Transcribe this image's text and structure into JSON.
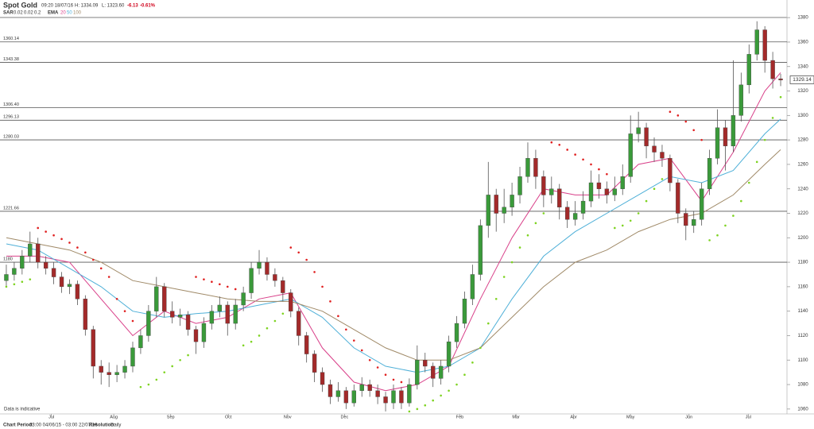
{
  "header": {
    "title": "Spot Gold",
    "time": "09:20 18/07/16",
    "high": "H: 1334.09",
    "low": "L: 1323.60",
    "change": "-6.13",
    "change_pct": "-0.61%",
    "sar_label": "SAR",
    "sar_params": [
      0.02,
      0.02,
      0.2
    ],
    "ema_label": "EMA"
  },
  "chart_data": {
    "type": "candlestick",
    "note": "Data is indicative",
    "up_color": "#3a9a3a",
    "down_color": "#a32a2a",
    "xlim": [
      -0.8,
      98.8
    ],
    "ylim": [
      1056,
      1384
    ],
    "xticks": [
      {
        "value": 5.7,
        "label": "Jul"
      },
      {
        "value": 13.6,
        "label": "Aug"
      },
      {
        "value": 20.8,
        "label": "Sep"
      },
      {
        "value": 28.1,
        "label": "Oct"
      },
      {
        "value": 35.6,
        "label": "Nov"
      },
      {
        "value": 42.8,
        "label": "Dec"
      },
      {
        "value": 57.4,
        "label": "Feb"
      },
      {
        "value": 64.5,
        "label": "Mar"
      },
      {
        "value": 71.8,
        "label": "Apr"
      },
      {
        "value": 79.0,
        "label": "May"
      },
      {
        "value": 86.4,
        "label": "Jun"
      },
      {
        "value": 93.9,
        "label": "Jul"
      }
    ],
    "yticks": [
      1060,
      1080,
      1100,
      1120,
      1140,
      1160,
      1180,
      1200,
      1220,
      1240,
      1260,
      1280,
      1300,
      1320,
      1340,
      1360,
      1380
    ],
    "levels": [
      1360.14,
      1343.38,
      {
        "value": 1306.4,
        "label": "1306.40"
      },
      1296.13,
      1280.03,
      1221.66,
      1180
    ],
    "last_price": 1329.14,
    "ohlc": [
      [
        1165,
        1178,
        1160,
        1170
      ],
      [
        1170,
        1180,
        1165,
        1175
      ],
      [
        1175,
        1190,
        1170,
        1185
      ],
      [
        1185,
        1205,
        1180,
        1195
      ],
      [
        1195,
        1200,
        1175,
        1180
      ],
      [
        1180,
        1185,
        1170,
        1175
      ],
      [
        1175,
        1180,
        1162,
        1168
      ],
      [
        1168,
        1172,
        1155,
        1160
      ],
      [
        1160,
        1166,
        1154,
        1162
      ],
      [
        1162,
        1165,
        1145,
        1150
      ],
      [
        1150,
        1153,
        1120,
        1125
      ],
      [
        1125,
        1128,
        1085,
        1095
      ],
      [
        1095,
        1100,
        1080,
        1090
      ],
      [
        1090,
        1098,
        1078,
        1088
      ],
      [
        1088,
        1096,
        1082,
        1090
      ],
      [
        1090,
        1100,
        1085,
        1095
      ],
      [
        1095,
        1115,
        1090,
        1110
      ],
      [
        1110,
        1125,
        1105,
        1120
      ],
      [
        1120,
        1145,
        1115,
        1140
      ],
      [
        1140,
        1168,
        1135,
        1160
      ],
      [
        1160,
        1163,
        1135,
        1140
      ],
      [
        1140,
        1148,
        1130,
        1135
      ],
      [
        1135,
        1142,
        1128,
        1137
      ],
      [
        1137,
        1140,
        1120,
        1125
      ],
      [
        1125,
        1128,
        1105,
        1115
      ],
      [
        1115,
        1135,
        1110,
        1130
      ],
      [
        1130,
        1145,
        1125,
        1140
      ],
      [
        1140,
        1152,
        1135,
        1145
      ],
      [
        1145,
        1148,
        1120,
        1130
      ],
      [
        1130,
        1150,
        1125,
        1145
      ],
      [
        1145,
        1160,
        1140,
        1155
      ],
      [
        1155,
        1180,
        1150,
        1175
      ],
      [
        1175,
        1190,
        1170,
        1180
      ],
      [
        1180,
        1184,
        1165,
        1170
      ],
      [
        1170,
        1175,
        1160,
        1165
      ],
      [
        1165,
        1168,
        1148,
        1155
      ],
      [
        1155,
        1158,
        1135,
        1140
      ],
      [
        1140,
        1143,
        1112,
        1120
      ],
      [
        1120,
        1123,
        1098,
        1105
      ],
      [
        1105,
        1108,
        1082,
        1090
      ],
      [
        1090,
        1094,
        1074,
        1080
      ],
      [
        1080,
        1084,
        1064,
        1070
      ],
      [
        1070,
        1082,
        1066,
        1075
      ],
      [
        1075,
        1078,
        1060,
        1065
      ],
      [
        1065,
        1080,
        1062,
        1075
      ],
      [
        1075,
        1086,
        1070,
        1080
      ],
      [
        1080,
        1084,
        1070,
        1075
      ],
      [
        1075,
        1080,
        1064,
        1070
      ],
      [
        1070,
        1074,
        1058,
        1065
      ],
      [
        1065,
        1080,
        1060,
        1075
      ],
      [
        1075,
        1078,
        1060,
        1065
      ],
      [
        1065,
        1085,
        1062,
        1080
      ],
      [
        1080,
        1112,
        1076,
        1100
      ],
      [
        1100,
        1106,
        1090,
        1095
      ],
      [
        1095,
        1098,
        1078,
        1085
      ],
      [
        1085,
        1100,
        1080,
        1095
      ],
      [
        1095,
        1120,
        1090,
        1115
      ],
      [
        1115,
        1136,
        1110,
        1130
      ],
      [
        1130,
        1156,
        1126,
        1150
      ],
      [
        1150,
        1178,
        1145,
        1170
      ],
      [
        1170,
        1215,
        1165,
        1210
      ],
      [
        1210,
        1262,
        1200,
        1235
      ],
      [
        1235,
        1240,
        1205,
        1220
      ],
      [
        1220,
        1240,
        1212,
        1225
      ],
      [
        1225,
        1245,
        1218,
        1235
      ],
      [
        1235,
        1258,
        1228,
        1250
      ],
      [
        1250,
        1278,
        1245,
        1265
      ],
      [
        1265,
        1272,
        1240,
        1250
      ],
      [
        1250,
        1255,
        1225,
        1235
      ],
      [
        1235,
        1250,
        1228,
        1240
      ],
      [
        1240,
        1244,
        1215,
        1225
      ],
      [
        1225,
        1230,
        1208,
        1215
      ],
      [
        1215,
        1230,
        1210,
        1220
      ],
      [
        1220,
        1238,
        1215,
        1230
      ],
      [
        1230,
        1255,
        1225,
        1245
      ],
      [
        1245,
        1252,
        1232,
        1240
      ],
      [
        1240,
        1246,
        1228,
        1235
      ],
      [
        1235,
        1250,
        1230,
        1240
      ],
      [
        1240,
        1260,
        1235,
        1250
      ],
      [
        1250,
        1300,
        1245,
        1285
      ],
      [
        1285,
        1303,
        1278,
        1290
      ],
      [
        1290,
        1294,
        1265,
        1275
      ],
      [
        1275,
        1282,
        1262,
        1270
      ],
      [
        1270,
        1276,
        1258,
        1265
      ],
      [
        1265,
        1268,
        1238,
        1245
      ],
      [
        1245,
        1248,
        1212,
        1220
      ],
      [
        1220,
        1224,
        1198,
        1210
      ],
      [
        1210,
        1222,
        1204,
        1215
      ],
      [
        1215,
        1245,
        1210,
        1240
      ],
      [
        1240,
        1272,
        1235,
        1265
      ],
      [
        1265,
        1305,
        1260,
        1290
      ],
      [
        1290,
        1296,
        1255,
        1275
      ],
      [
        1275,
        1345,
        1270,
        1300
      ],
      [
        1300,
        1335,
        1295,
        1325
      ],
      [
        1325,
        1358,
        1318,
        1350
      ],
      [
        1350,
        1377,
        1345,
        1370
      ],
      [
        1370,
        1373,
        1335,
        1345
      ],
      [
        1345,
        1352,
        1322,
        1330
      ],
      [
        1330,
        1334,
        1324,
        1329
      ]
    ],
    "sar": {
      "up_color": "#7ed321",
      "down_color": "#e02020",
      "values": [
        1160,
        1162,
        1164,
        1166,
        1208,
        1205,
        1202,
        1199,
        1196,
        1192,
        1188,
        1182,
        1175,
        1168,
        1150,
        1140,
        1132,
        1078,
        1080,
        1084,
        1090,
        1095,
        1100,
        1104,
        1168,
        1166,
        1164,
        1162,
        1160,
        1158,
        1112,
        1115,
        1120,
        1126,
        1132,
        1138,
        1192,
        1188,
        1182,
        1172,
        1160,
        1148,
        1136,
        1125,
        1116,
        1108,
        1100,
        1094,
        1088,
        1084,
        1082,
        1058,
        1060,
        1063,
        1067,
        1071,
        1075,
        1080,
        1088,
        1098,
        1110,
        1130,
        1150,
        1168,
        1180,
        1192,
        1202,
        1212,
        1220,
        1278,
        1276,
        1272,
        1268,
        1264,
        1260,
        1256,
        1252,
        1208,
        1210,
        1214,
        1220,
        1230,
        1240,
        1248,
        1303,
        1300,
        1295,
        1288,
        1280,
        1198,
        1202,
        1210,
        1218,
        1230,
        1245,
        1262,
        1280,
        1298,
        1315
      ]
    },
    "ema_x": [
      0,
      4,
      8,
      12,
      16,
      20,
      24,
      28,
      32,
      36,
      40,
      44,
      48,
      52,
      56,
      60,
      64,
      68,
      72,
      76,
      80,
      84,
      88,
      92,
      96,
      98
    ],
    "ema": [
      {
        "name": "20",
        "color": "#d9418a",
        "values": [
          1185,
          1185,
          1180,
          1150,
          1120,
          1140,
          1130,
          1135,
          1150,
          1155,
          1110,
          1082,
          1075,
          1080,
          1095,
          1150,
          1200,
          1240,
          1235,
          1235,
          1260,
          1265,
          1230,
          1270,
          1320,
          1335
        ]
      },
      {
        "name": "50",
        "color": "#4fb0d8",
        "values": [
          1195,
          1190,
          1175,
          1160,
          1140,
          1135,
          1138,
          1140,
          1145,
          1150,
          1135,
          1110,
          1095,
          1090,
          1095,
          1110,
          1150,
          1185,
          1205,
          1220,
          1235,
          1250,
          1245,
          1255,
          1285,
          1297
        ]
      },
      {
        "name": "100",
        "color": "#a08a68",
        "values": [
          1200,
          1195,
          1190,
          1180,
          1165,
          1160,
          1155,
          1150,
          1148,
          1148,
          1140,
          1125,
          1110,
          1100,
          1100,
          1110,
          1135,
          1160,
          1180,
          1190,
          1205,
          1215,
          1220,
          1235,
          1260,
          1272
        ]
      }
    ]
  },
  "footer": {
    "period_label": "Chart Period:",
    "period": "03:00 04/06/15 - 03:00 22/07/16",
    "resolution_label": "Resolution:",
    "resolution": "Daily"
  }
}
